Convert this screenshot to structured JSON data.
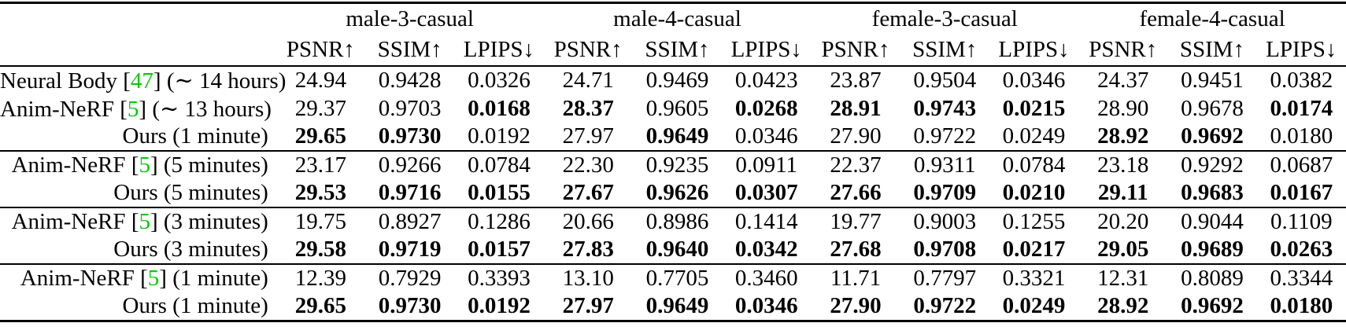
{
  "colors": {
    "citation_green": "#00cc00",
    "text": "#000000",
    "background": "#ffffff",
    "rule": "#000000"
  },
  "table": {
    "groups": [
      "male-3-casual",
      "male-4-casual",
      "female-3-casual",
      "female-4-casual"
    ],
    "metrics": [
      "PSNR↑",
      "SSIM↑",
      "LPIPS↓"
    ],
    "blocks": [
      {
        "rows": [
          {
            "label_prefix": "Neural Body [",
            "citation": "47",
            "label_suffix": "] (∼ 14 hours)",
            "values": [
              "24.94",
              "0.9428",
              "0.0326",
              "24.71",
              "0.9469",
              "0.0423",
              "23.87",
              "0.9504",
              "0.0346",
              "24.37",
              "0.9451",
              "0.0382"
            ],
            "bold": [
              false,
              false,
              false,
              false,
              false,
              false,
              false,
              false,
              false,
              false,
              false,
              false
            ]
          },
          {
            "label_prefix": "Anim-NeRF [",
            "citation": "5",
            "label_suffix": "] (∼ 13 hours)",
            "values": [
              "29.37",
              "0.9703",
              "0.0168",
              "28.37",
              "0.9605",
              "0.0268",
              "28.91",
              "0.9743",
              "0.0215",
              "28.90",
              "0.9678",
              "0.0174"
            ],
            "bold": [
              false,
              false,
              true,
              true,
              false,
              true,
              true,
              true,
              true,
              false,
              false,
              true
            ]
          },
          {
            "label_prefix": "Ours (1 minute)",
            "citation": "",
            "label_suffix": "",
            "values": [
              "29.65",
              "0.9730",
              "0.0192",
              "27.97",
              "0.9649",
              "0.0346",
              "27.90",
              "0.9722",
              "0.0249",
              "28.92",
              "0.9692",
              "0.0180"
            ],
            "bold": [
              true,
              true,
              false,
              false,
              true,
              false,
              false,
              false,
              false,
              true,
              true,
              false
            ]
          }
        ]
      },
      {
        "rows": [
          {
            "label_prefix": "Anim-NeRF [",
            "citation": "5",
            "label_suffix": "] (5 minutes)",
            "values": [
              "23.17",
              "0.9266",
              "0.0784",
              "22.30",
              "0.9235",
              "0.0911",
              "22.37",
              "0.9311",
              "0.0784",
              "23.18",
              "0.9292",
              "0.0687"
            ],
            "bold": [
              false,
              false,
              false,
              false,
              false,
              false,
              false,
              false,
              false,
              false,
              false,
              false
            ]
          },
          {
            "label_prefix": "Ours (5 minutes)",
            "citation": "",
            "label_suffix": "",
            "values": [
              "29.53",
              "0.9716",
              "0.0155",
              "27.67",
              "0.9626",
              "0.0307",
              "27.66",
              "0.9709",
              "0.0210",
              "29.11",
              "0.9683",
              "0.0167"
            ],
            "bold": [
              true,
              true,
              true,
              true,
              true,
              true,
              true,
              true,
              true,
              true,
              true,
              true
            ]
          }
        ]
      },
      {
        "rows": [
          {
            "label_prefix": "Anim-NeRF [",
            "citation": "5",
            "label_suffix": "] (3 minutes)",
            "values": [
              "19.75",
              "0.8927",
              "0.1286",
              "20.66",
              "0.8986",
              "0.1414",
              "19.77",
              "0.9003",
              "0.1255",
              "20.20",
              "0.9044",
              "0.1109"
            ],
            "bold": [
              false,
              false,
              false,
              false,
              false,
              false,
              false,
              false,
              false,
              false,
              false,
              false
            ]
          },
          {
            "label_prefix": "Ours (3 minutes)",
            "citation": "",
            "label_suffix": "",
            "values": [
              "29.58",
              "0.9719",
              "0.0157",
              "27.83",
              "0.9640",
              "0.0342",
              "27.68",
              "0.9708",
              "0.0217",
              "29.05",
              "0.9689",
              "0.0263"
            ],
            "bold": [
              true,
              true,
              true,
              true,
              true,
              true,
              true,
              true,
              true,
              true,
              true,
              true
            ]
          }
        ]
      },
      {
        "rows": [
          {
            "label_prefix": "Anim-NeRF [",
            "citation": "5",
            "label_suffix": "] (1 minute)",
            "values": [
              "12.39",
              "0.7929",
              "0.3393",
              "13.10",
              "0.7705",
              "0.3460",
              "11.71",
              "0.7797",
              "0.3321",
              "12.31",
              "0.8089",
              "0.3344"
            ],
            "bold": [
              false,
              false,
              false,
              false,
              false,
              false,
              false,
              false,
              false,
              false,
              false,
              false
            ]
          },
          {
            "label_prefix": "Ours (1 minute)",
            "citation": "",
            "label_suffix": "",
            "values": [
              "29.65",
              "0.9730",
              "0.0192",
              "27.97",
              "0.9649",
              "0.0346",
              "27.90",
              "0.9722",
              "0.0249",
              "28.92",
              "0.9692",
              "0.0180"
            ],
            "bold": [
              true,
              true,
              true,
              true,
              true,
              true,
              true,
              true,
              true,
              true,
              true,
              true
            ]
          }
        ]
      }
    ]
  }
}
